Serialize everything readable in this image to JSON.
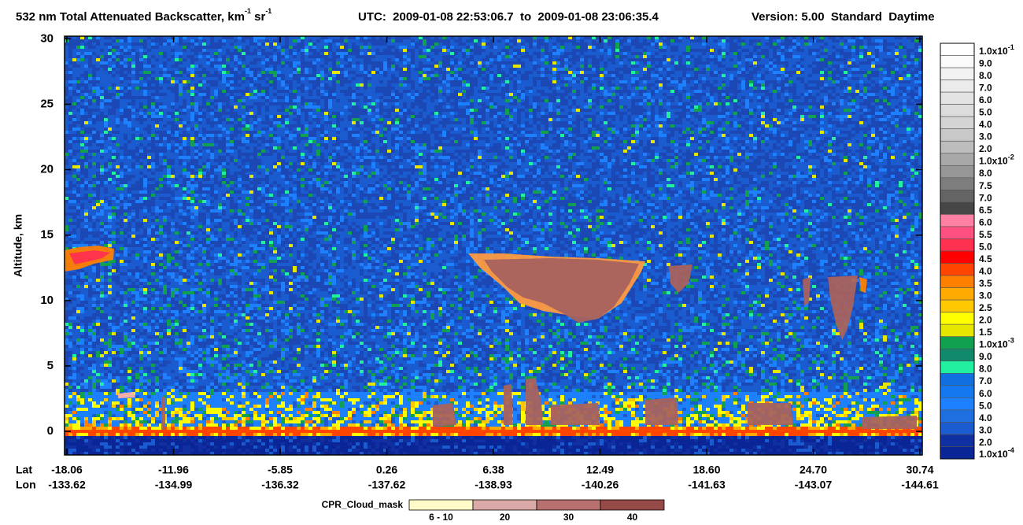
{
  "chart_data": {
    "type": "heatmap",
    "title": [
      "532 nm Total Attenuated Backscatter, km",
      "-1",
      " sr",
      "-1"
    ],
    "time_range": "UTC:  2009-01-08 22:53:06.7  to  2009-01-08 23:06:35.4",
    "version": "Version: 5.00  Standard  Daytime",
    "y_label": "Altitude, km",
    "ylim": [
      -1.8,
      30.2
    ],
    "yticks": [
      0,
      5,
      10,
      15,
      20,
      25,
      30
    ],
    "x_rows": [
      {
        "name": "Lat",
        "labels": [
          "-18.06",
          "-11.96",
          "-5.85",
          "0.26",
          "6.38",
          "12.49",
          "18.60",
          "24.70",
          "30.74"
        ]
      },
      {
        "name": "Lon",
        "labels": [
          "-133.62",
          "-134.99",
          "-136.32",
          "-137.62",
          "-138.93",
          "-140.26",
          "-141.63",
          "-143.07",
          "-144.61"
        ]
      }
    ],
    "colorbar": {
      "levels": [
        [
          "1.0x10",
          "-1"
        ],
        "9.0",
        "8.0",
        "7.0",
        "6.0",
        "5.0",
        "4.0",
        "3.0",
        "2.0",
        [
          "1.0x10",
          "-2"
        ],
        "8.0",
        "7.5",
        "7.0",
        "6.5",
        "6.0",
        "5.5",
        "5.0",
        "4.5",
        "4.0",
        "3.5",
        "3.0",
        "2.5",
        "2.0",
        "1.5",
        [
          "1.0x10",
          "-3"
        ],
        "9.0",
        "8.0",
        "7.0",
        "6.0",
        "5.0",
        "4.0",
        "3.0",
        "2.0",
        [
          "1.0x10",
          "-4"
        ]
      ],
      "colors": [
        "#ffffff",
        "#fafafa",
        "#f2f2f2",
        "#ebebeb",
        "#e3e3e3",
        "#dcdcdc",
        "#d4d4d4",
        "#c8c8c8",
        "#bdbdbd",
        "#a8a8a8",
        "#969696",
        "#7d7d7d",
        "#646464",
        "#464646",
        "#ff80a0",
        "#ff5080",
        "#ff3050",
        "#ff0000",
        "#ff4500",
        "#ff7f00",
        "#ffaa00",
        "#ffc800",
        "#ffff00",
        "#e6e600",
        "#10a050",
        "#108a6a",
        "#20f0a0",
        "#1070e0",
        "#1478f0",
        "#1c80ff",
        "#1e6fe0",
        "#1a5cd0",
        "#102fa0",
        "#0a2596"
      ]
    },
    "cloud_mask": {
      "name": "CPR_Cloud_mask",
      "labels": [
        "6 - 10",
        "20",
        "30",
        "40"
      ],
      "colors": [
        "#fffac8",
        "#d9aaa7",
        "#b8716f",
        "#954a48"
      ]
    }
  }
}
